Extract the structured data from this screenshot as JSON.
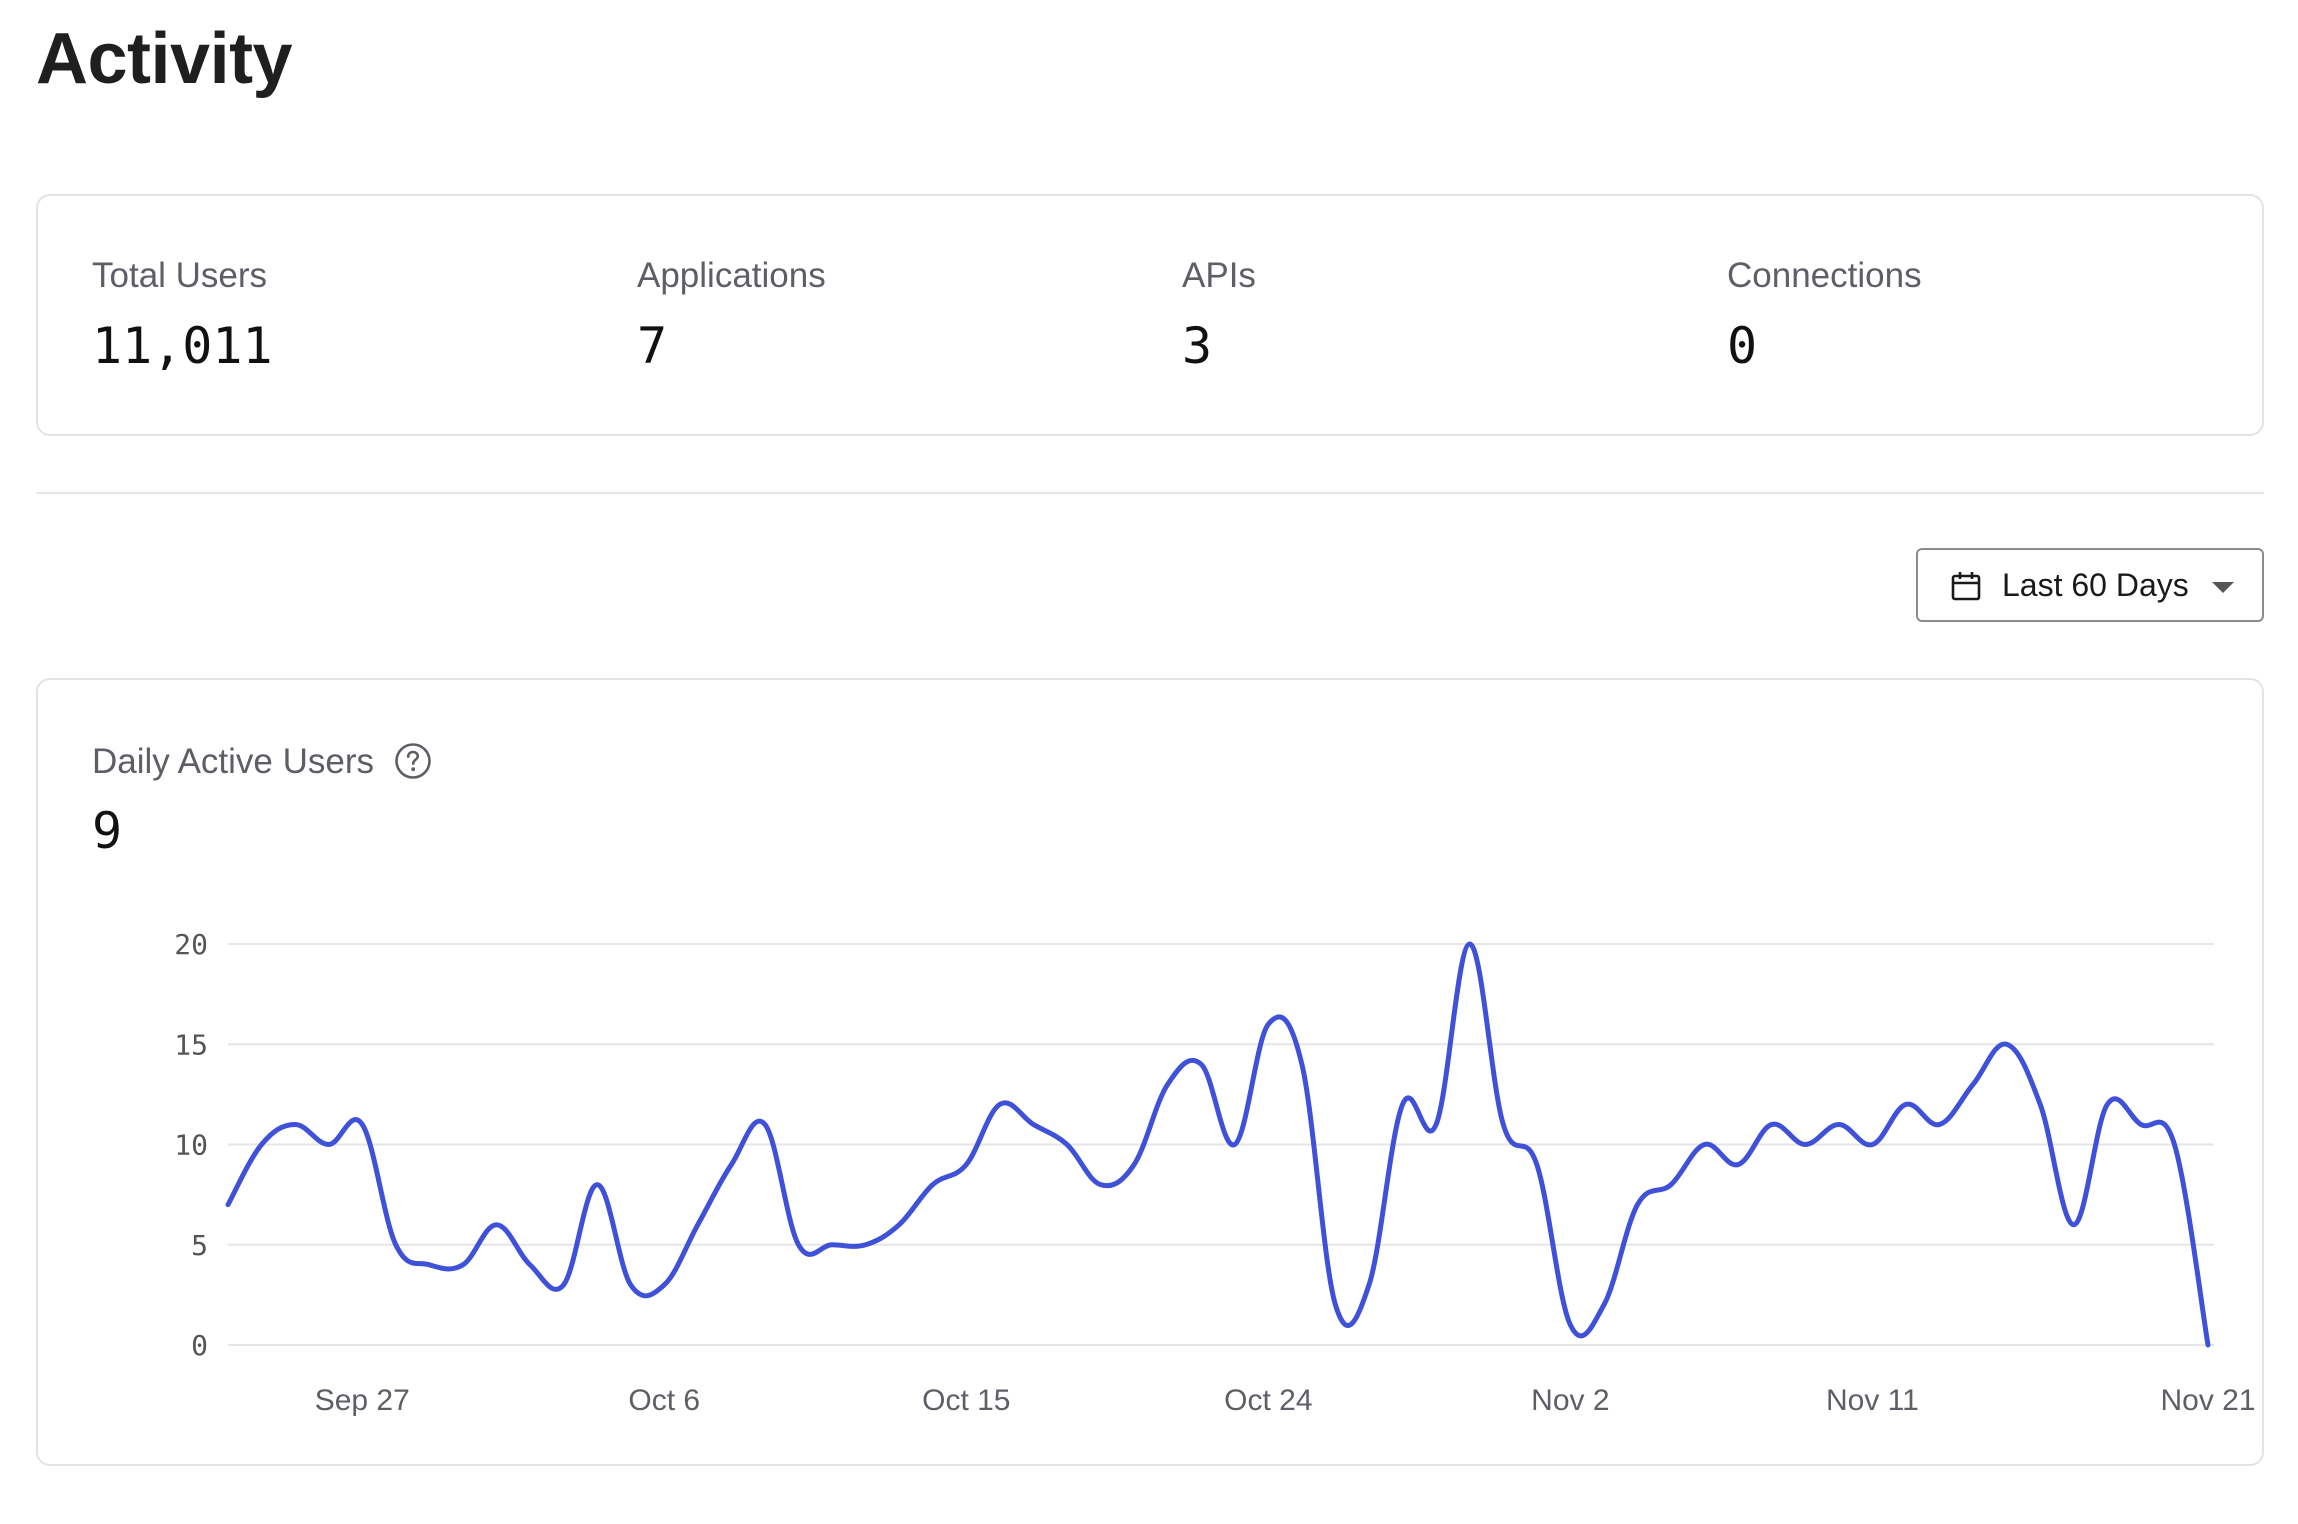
{
  "page": {
    "title": "Activity"
  },
  "stats": [
    {
      "label": "Total Users",
      "value": "11,011"
    },
    {
      "label": "Applications",
      "value": "7"
    },
    {
      "label": "APIs",
      "value": "3"
    },
    {
      "label": "Connections",
      "value": "0"
    }
  ],
  "range_selector": {
    "label": "Last 60 Days",
    "icon": "calendar-icon"
  },
  "dau_card": {
    "title": "Daily Active Users",
    "help_icon": "help-circle-icon",
    "value": "9"
  },
  "colors": {
    "line": "#3f51d9",
    "grid": "#e6e6ea",
    "axis_text": "#555555"
  },
  "chart_data": {
    "type": "line",
    "title": "",
    "xlabel": "",
    "ylabel": "",
    "ylim": [
      0,
      20
    ],
    "yticks": [
      "20",
      "15",
      "10",
      "5",
      "0"
    ],
    "xticks": [
      "Sep 27",
      "Oct 6",
      "Oct 15",
      "Oct 24",
      "Nov 2",
      "Nov 11",
      "Nov 21"
    ],
    "grid": true,
    "x": [
      "Sep 23",
      "Sep 24",
      "Sep 25",
      "Sep 26",
      "Sep 27",
      "Sep 28",
      "Sep 29",
      "Sep 30",
      "Oct 1",
      "Oct 2",
      "Oct 3",
      "Oct 4",
      "Oct 5",
      "Oct 6",
      "Oct 7",
      "Oct 8",
      "Oct 9",
      "Oct 10",
      "Oct 11",
      "Oct 12",
      "Oct 13",
      "Oct 14",
      "Oct 15",
      "Oct 16",
      "Oct 17",
      "Oct 18",
      "Oct 19",
      "Oct 20",
      "Oct 21",
      "Oct 22",
      "Oct 23",
      "Oct 24",
      "Oct 25",
      "Oct 26",
      "Oct 27",
      "Oct 28",
      "Oct 29",
      "Oct 30",
      "Oct 31",
      "Nov 1",
      "Nov 2",
      "Nov 3",
      "Nov 4",
      "Nov 5",
      "Nov 6",
      "Nov 7",
      "Nov 8",
      "Nov 9",
      "Nov 10",
      "Nov 11",
      "Nov 12",
      "Nov 13",
      "Nov 14",
      "Nov 15",
      "Nov 16",
      "Nov 17",
      "Nov 18",
      "Nov 19",
      "Nov 20",
      "Nov 21"
    ],
    "series": [
      {
        "values": [
          7,
          10,
          11,
          10,
          11,
          5,
          4,
          4,
          6,
          4,
          3,
          8,
          3,
          3,
          6,
          9,
          11,
          5,
          5,
          5,
          6,
          8,
          9,
          12,
          11,
          10,
          8,
          9,
          13,
          14,
          10,
          16,
          14,
          2,
          3,
          12,
          11,
          20,
          11,
          9,
          1,
          2,
          7,
          8,
          10,
          9,
          11,
          10,
          11,
          10,
          12,
          11,
          13,
          15,
          12,
          6,
          12,
          11,
          10,
          0
        ]
      }
    ]
  }
}
